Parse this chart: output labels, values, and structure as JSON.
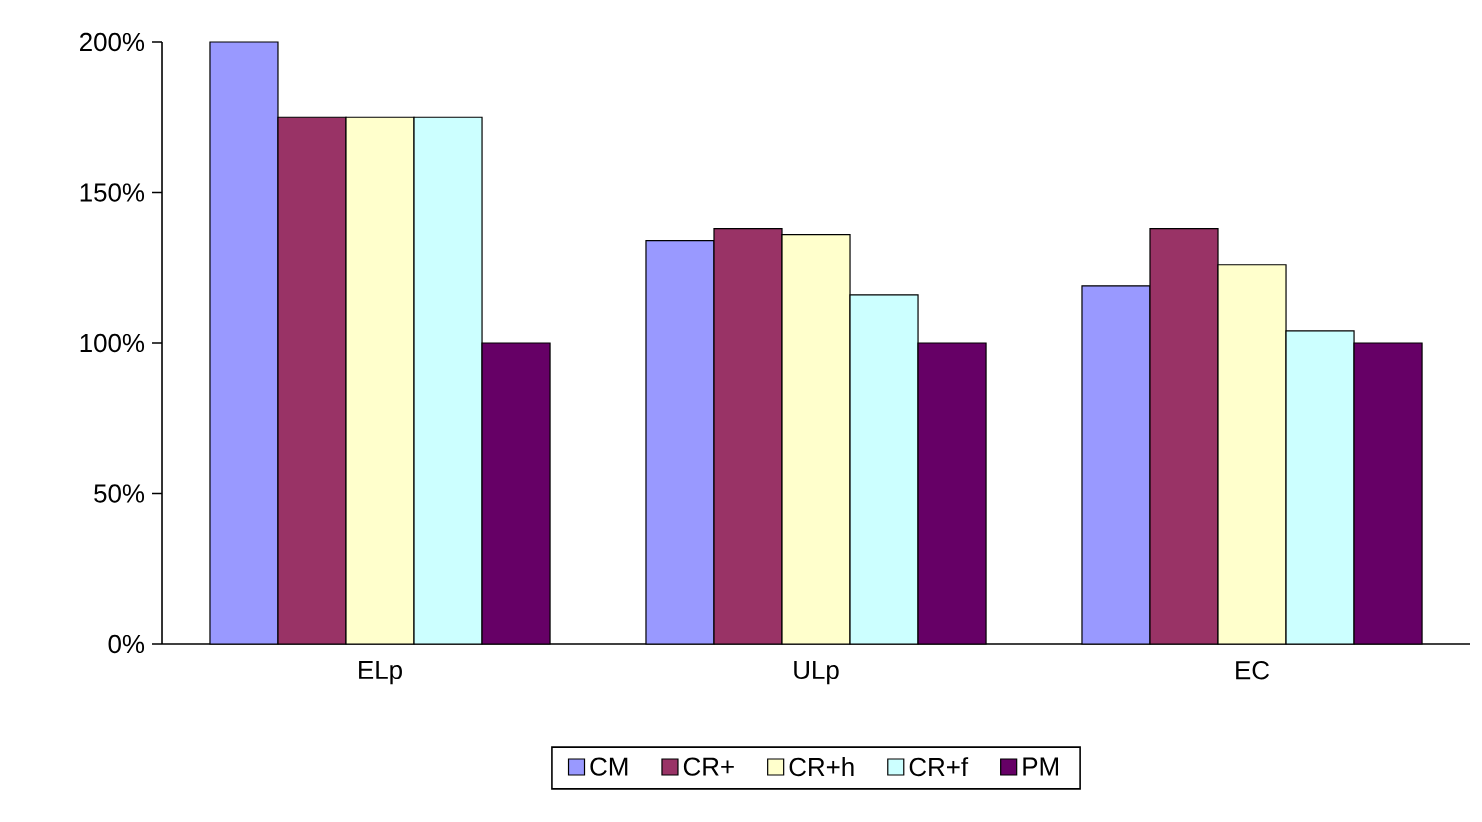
{
  "chart_data": {
    "type": "bar",
    "categories": [
      "ELp",
      "ULp",
      "EC"
    ],
    "series": [
      {
        "name": "CM",
        "color": "#9999ff",
        "values": [
          200,
          134,
          119
        ]
      },
      {
        "name": "CR+",
        "color": "#993366",
        "values": [
          175,
          138,
          138
        ]
      },
      {
        "name": "CR+h",
        "color": "#ffffcc",
        "values": [
          175,
          136,
          126
        ]
      },
      {
        "name": "CR+f",
        "color": "#ccffff",
        "values": [
          175,
          116,
          104
        ]
      },
      {
        "name": "PM",
        "color": "#660066",
        "values": [
          100,
          100,
          100
        ]
      }
    ],
    "ylim": [
      0,
      200
    ],
    "yticks": [
      {
        "value": 0,
        "label": "0%"
      },
      {
        "value": 50,
        "label": "50%"
      },
      {
        "value": 100,
        "label": "100%"
      },
      {
        "value": 150,
        "label": "150%"
      },
      {
        "value": 200,
        "label": "200%"
      }
    ],
    "grid": false,
    "legend": "bottom"
  }
}
